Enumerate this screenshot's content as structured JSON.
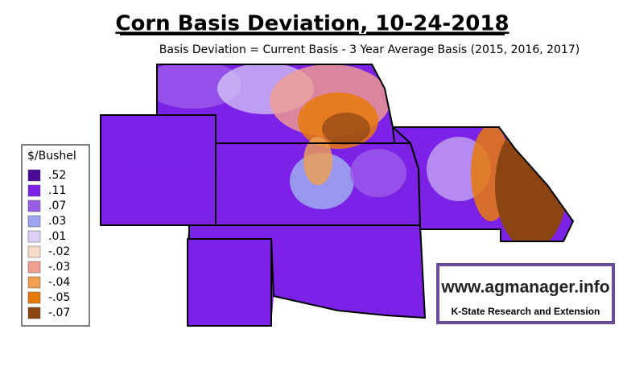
{
  "title": "Corn Basis Deviation, 10-24-2018",
  "subtitle": "Basis Deviation = Current Basis - 3 Year Average Basis (2015, 2016, 2017)",
  "legend": {
    "title": "$/Bushel",
    "items": [
      {
        "label": ".52",
        "color": "#4a0a96"
      },
      {
        "label": ".11",
        "color": "#7b22e6"
      },
      {
        "label": ".07",
        "color": "#9b5de8"
      },
      {
        "label": ".03",
        "color": "#9da4f0"
      },
      {
        "label": ".01",
        "color": "#ddd2f6"
      },
      {
        "label": "-.02",
        "color": "#f8dcc8"
      },
      {
        "label": "-.03",
        "color": "#f2a090"
      },
      {
        "label": "-.04",
        "color": "#f0a050"
      },
      {
        "label": "-.05",
        "color": "#e87a0a"
      },
      {
        "label": "-.07",
        "color": "#8b4513"
      }
    ]
  },
  "watermark": {
    "url": "www.agmanager.info",
    "org": "K-State Research and Extension"
  }
}
